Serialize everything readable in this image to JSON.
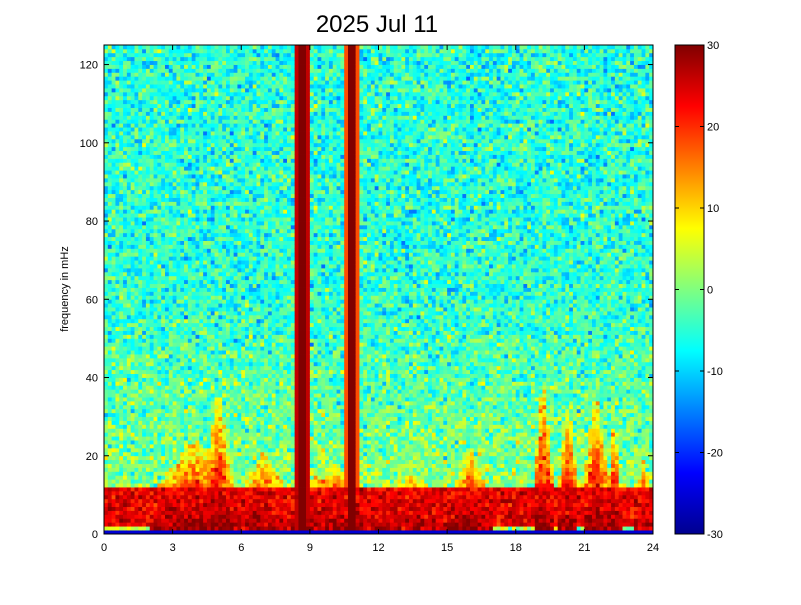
{
  "chart_data": {
    "type": "heatmap",
    "title": "2025 Jul 11",
    "xlabel": "",
    "ylabel": "frequency in mHz",
    "x_range": [
      0,
      24
    ],
    "y_range": [
      0,
      125
    ],
    "x_ticks": [
      "0",
      "3",
      "6",
      "9",
      "12",
      "15",
      "18",
      "21",
      "24"
    ],
    "x_tick_values": [
      0,
      3,
      6,
      9,
      12,
      15,
      18,
      21,
      24
    ],
    "y_ticks": [
      "0",
      "20",
      "40",
      "60",
      "80",
      "100",
      "120"
    ],
    "y_tick_values": [
      0,
      20,
      40,
      60,
      80,
      100,
      120
    ],
    "colorbar": {
      "colormap": "jet",
      "range": [
        -30,
        30
      ],
      "ticks": [
        "-30",
        "-20",
        "-10",
        "0",
        "10",
        "20",
        "30"
      ],
      "tick_values": [
        -30,
        -20,
        -10,
        0,
        10,
        20,
        30
      ]
    },
    "grid": false,
    "grid_cells": {
      "time_bins": 144,
      "frequency_bins": 125
    },
    "features": {
      "background_level": -5,
      "low_frequency_level": 28,
      "vertical_bands": [
        {
          "time": 8.65,
          "width": 0.3,
          "level": 30,
          "edge_level": 26
        },
        {
          "time": 10.8,
          "width": 0.3,
          "level": 30,
          "edge_level": 18
        }
      ],
      "activity_bursts": [
        {
          "time": 4.0,
          "width": 2.0,
          "extent_mhz": 25
        },
        {
          "time": 5.0,
          "width": 0.6,
          "extent_mhz": 38
        },
        {
          "time": 7.0,
          "width": 1.2,
          "extent_mhz": 22
        },
        {
          "time": 10.0,
          "width": 2.5,
          "extent_mhz": 18
        },
        {
          "time": 13.5,
          "width": 2.5,
          "extent_mhz": 15
        },
        {
          "time": 16.0,
          "width": 1.0,
          "extent_mhz": 22
        },
        {
          "time": 19.2,
          "width": 0.4,
          "extent_mhz": 42
        },
        {
          "time": 20.3,
          "width": 0.4,
          "extent_mhz": 35
        },
        {
          "time": 21.5,
          "width": 0.5,
          "extent_mhz": 38
        },
        {
          "time": 22.3,
          "width": 0.3,
          "extent_mhz": 30
        },
        {
          "time": 23.6,
          "width": 0.4,
          "extent_mhz": 20
        }
      ]
    }
  }
}
